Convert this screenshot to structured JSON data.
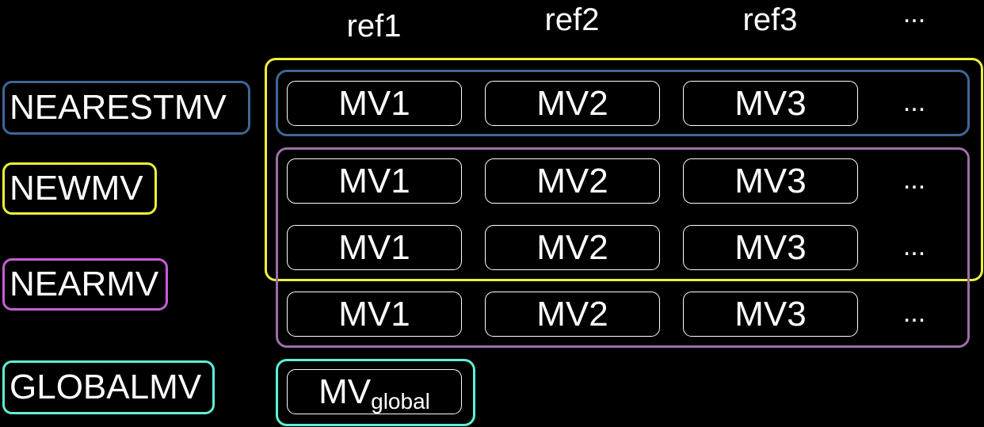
{
  "colors": {
    "background": "#000000",
    "text": "#ffffff",
    "nearestmv": "#3f6796",
    "newmv": "#ecf23a",
    "nearmv": "#c55fd6",
    "globalmv": "#5ff0d6",
    "nearmv_group": "#9c6fa8"
  },
  "columns": [
    "ref1",
    "ref2",
    "ref3",
    "..."
  ],
  "modes": {
    "nearestmv": "NEARESTMV",
    "newmv": "NEWMV",
    "nearmv": "NEARMV",
    "globalmv": "GLOBALMV"
  },
  "rows": [
    {
      "cells": [
        "MV1",
        "MV2",
        "MV3"
      ],
      "more": "..."
    },
    {
      "cells": [
        "MV1",
        "MV2",
        "MV3"
      ],
      "more": "..."
    },
    {
      "cells": [
        "MV1",
        "MV2",
        "MV3"
      ],
      "more": "..."
    },
    {
      "cells": [
        "MV1",
        "MV2",
        "MV3"
      ],
      "more": "..."
    }
  ],
  "global_cell": {
    "base": "MV",
    "subscript": "global"
  }
}
